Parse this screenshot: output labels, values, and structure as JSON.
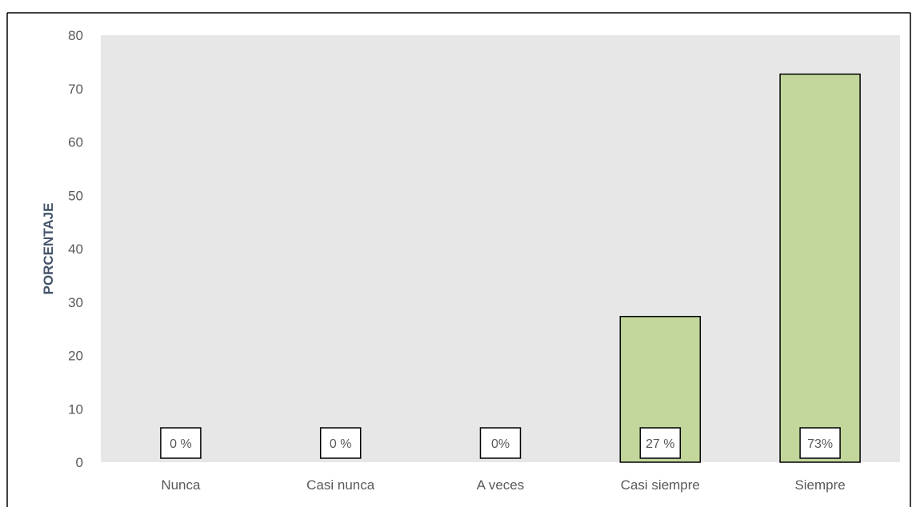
{
  "chart_data": {
    "type": "bar",
    "title": "",
    "xlabel": "",
    "ylabel": "PORCENTAJE",
    "ylim": [
      0,
      80
    ],
    "yticks": [
      0,
      10,
      20,
      30,
      40,
      50,
      60,
      70,
      80
    ],
    "categories": [
      "Nunca",
      "Casi nunca",
      "A veces",
      "Casi siempre",
      "Siempre"
    ],
    "values": [
      0,
      0,
      0,
      27.3,
      72.7
    ],
    "data_labels": [
      "0 %",
      "0 %",
      "0%",
      "27 %",
      "73%"
    ],
    "grid": false,
    "legend": "none"
  },
  "colors": {
    "plot_background": "#e7e7e7",
    "bar_fill": "#c3d69b",
    "bar_stroke": "#000000",
    "axis_text": "#595959",
    "ylabel_text": "#44546a",
    "label_box_fill": "#ffffff",
    "label_box_stroke": "#000000"
  }
}
